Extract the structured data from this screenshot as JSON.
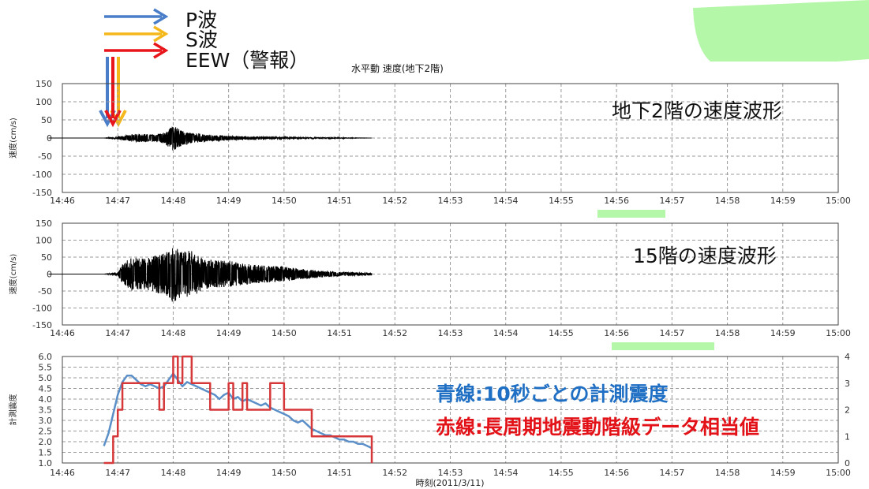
{
  "legend": {
    "p_wave": "P波",
    "s_wave": "S波",
    "eew": "EEW（警報）",
    "colors": {
      "p_wave": "#4a7ec8",
      "s_wave": "#f5b81c",
      "eew": "#e8151b"
    }
  },
  "chart_data": [
    {
      "type": "line",
      "title": "水平動 速度(地下2階)",
      "annotation": "地下2階の速度波形",
      "ylabel": "速度(cm/s)",
      "ylim": [
        -150,
        150
      ],
      "yticks": [
        "150",
        "100",
        "50",
        "0",
        "-50",
        "-100",
        "-150"
      ],
      "xticks": [
        "14:46",
        "14:47",
        "14:48",
        "14:49",
        "14:50",
        "14:51",
        "14:52",
        "14:53",
        "14:54",
        "14:55",
        "14:56",
        "14:57",
        "14:58",
        "14:59",
        "15:00"
      ],
      "grid": true,
      "series": [
        {
          "color": "#000000",
          "envelope": {
            "time": [
              "14:46:45",
              "14:46:55",
              "14:47:05",
              "14:47:20",
              "14:47:40",
              "14:47:50",
              "14:48:00",
              "14:48:10",
              "14:48:20",
              "14:48:40",
              "14:49:00",
              "14:49:30",
              "14:50:00",
              "14:50:30",
              "14:51:00",
              "14:51:35"
            ],
            "amp": [
              0,
              2,
              6,
              12,
              10,
              15,
              35,
              20,
              14,
              9,
              6,
              4,
              3,
              2,
              1,
              0
            ]
          }
        }
      ]
    },
    {
      "type": "line",
      "annotation": "15階の速度波形",
      "ylabel": "速度(cm/s)",
      "ylim": [
        -150,
        150
      ],
      "yticks": [
        "150",
        "100",
        "50",
        "0",
        "-50",
        "-100",
        "-150"
      ],
      "xticks": [
        "14:46",
        "14:47",
        "14:48",
        "14:49",
        "14:50",
        "14:51",
        "14:52",
        "14:53",
        "14:54",
        "14:55",
        "14:56",
        "14:57",
        "14:58",
        "14:59",
        "15:00"
      ],
      "grid": true,
      "series": [
        {
          "color": "#000000",
          "envelope": {
            "time": [
              "14:46:45",
              "14:47:00",
              "14:47:05",
              "14:47:15",
              "14:47:30",
              "14:47:40",
              "14:47:50",
              "14:48:00",
              "14:48:10",
              "14:48:20",
              "14:48:30",
              "14:48:45",
              "14:49:00",
              "14:49:20",
              "14:49:40",
              "14:50:00",
              "14:50:20",
              "14:50:40",
              "14:51:00",
              "14:51:35"
            ],
            "amp": [
              0,
              5,
              30,
              50,
              45,
              55,
              60,
              85,
              65,
              70,
              50,
              40,
              40,
              30,
              25,
              22,
              15,
              10,
              6,
              3
            ]
          }
        }
      ]
    },
    {
      "type": "line",
      "ylabel": "計測震度",
      "xlabel": "時刻(2011/3/11)",
      "ylim": [
        1.0,
        6.0
      ],
      "y2lim": [
        0,
        4
      ],
      "yticks": [
        "6.0",
        "5.5",
        "5.0",
        "4.5",
        "4.0",
        "3.5",
        "3.0",
        "2.5",
        "2.0",
        "1.5",
        "1.0"
      ],
      "y2ticks": [
        "4",
        "3",
        "2",
        "1",
        "0"
      ],
      "xticks": [
        "14:46",
        "14:47",
        "14:48",
        "14:49",
        "14:50",
        "14:51",
        "14:52",
        "14:53",
        "14:54",
        "14:55",
        "14:56",
        "14:57",
        "14:58",
        "14:59",
        "15:00"
      ],
      "grid": true,
      "annotations": [
        "青線:10秒ごとの計測震度",
        "赤線:長周期地震動階級データ相当値"
      ],
      "series": [
        {
          "color": "#5b8fc8",
          "axis": "left",
          "time": [
            "14:46:45",
            "14:46:50",
            "14:46:55",
            "14:47:00",
            "14:47:05",
            "14:47:10",
            "14:47:15",
            "14:47:20",
            "14:47:25",
            "14:47:30",
            "14:47:35",
            "14:47:40",
            "14:47:45",
            "14:47:50",
            "14:47:55",
            "14:48:00",
            "14:48:05",
            "14:48:10",
            "14:48:15",
            "14:48:20",
            "14:48:25",
            "14:48:30",
            "14:48:35",
            "14:48:40",
            "14:48:45",
            "14:48:50",
            "14:48:55",
            "14:49:00",
            "14:49:05",
            "14:49:10",
            "14:49:15",
            "14:49:20",
            "14:49:25",
            "14:49:30",
            "14:49:35",
            "14:49:40",
            "14:49:45",
            "14:49:50",
            "14:49:55",
            "14:50:00",
            "14:50:05",
            "14:50:10",
            "14:50:15",
            "14:50:20",
            "14:50:25",
            "14:50:30",
            "14:50:35",
            "14:50:40",
            "14:50:45",
            "14:50:50",
            "14:50:55",
            "14:51:00",
            "14:51:05",
            "14:51:10",
            "14:51:15",
            "14:51:20",
            "14:51:25",
            "14:51:30",
            "14:51:35"
          ],
          "values": [
            1.8,
            2.4,
            3.3,
            4.2,
            4.8,
            5.1,
            5.1,
            4.9,
            4.7,
            4.6,
            4.7,
            4.6,
            4.5,
            4.6,
            4.9,
            5.2,
            4.9,
            4.6,
            4.8,
            4.7,
            4.6,
            4.5,
            4.4,
            4.3,
            4.2,
            4.0,
            4.2,
            4.3,
            4.0,
            4.1,
            3.9,
            4.0,
            3.9,
            3.8,
            3.7,
            3.8,
            3.6,
            3.5,
            3.4,
            3.3,
            3.2,
            3.0,
            2.9,
            3.0,
            2.8,
            2.6,
            2.5,
            2.4,
            2.3,
            2.3,
            2.2,
            2.1,
            2.1,
            2.0,
            2.0,
            1.9,
            1.9,
            1.8,
            1.7
          ]
        },
        {
          "color": "#d6383a",
          "axis": "right",
          "step": true,
          "time": [
            "14:46:45",
            "14:46:55",
            "14:47:00",
            "14:47:05",
            "14:47:20",
            "14:47:45",
            "14:47:50",
            "14:48:00",
            "14:48:05",
            "14:48:10",
            "14:48:20",
            "14:48:25",
            "14:48:35",
            "14:48:40",
            "14:49:00",
            "14:49:05",
            "14:49:15",
            "14:49:20",
            "14:49:40",
            "14:49:45",
            "14:50:00",
            "14:50:15",
            "14:50:30",
            "14:51:35"
          ],
          "values": [
            0,
            1,
            2,
            3,
            3,
            2,
            3,
            4,
            3,
            4,
            3,
            3,
            3,
            2,
            3,
            2,
            3,
            2,
            2,
            3,
            2,
            2,
            1,
            0
          ]
        }
      ]
    }
  ]
}
